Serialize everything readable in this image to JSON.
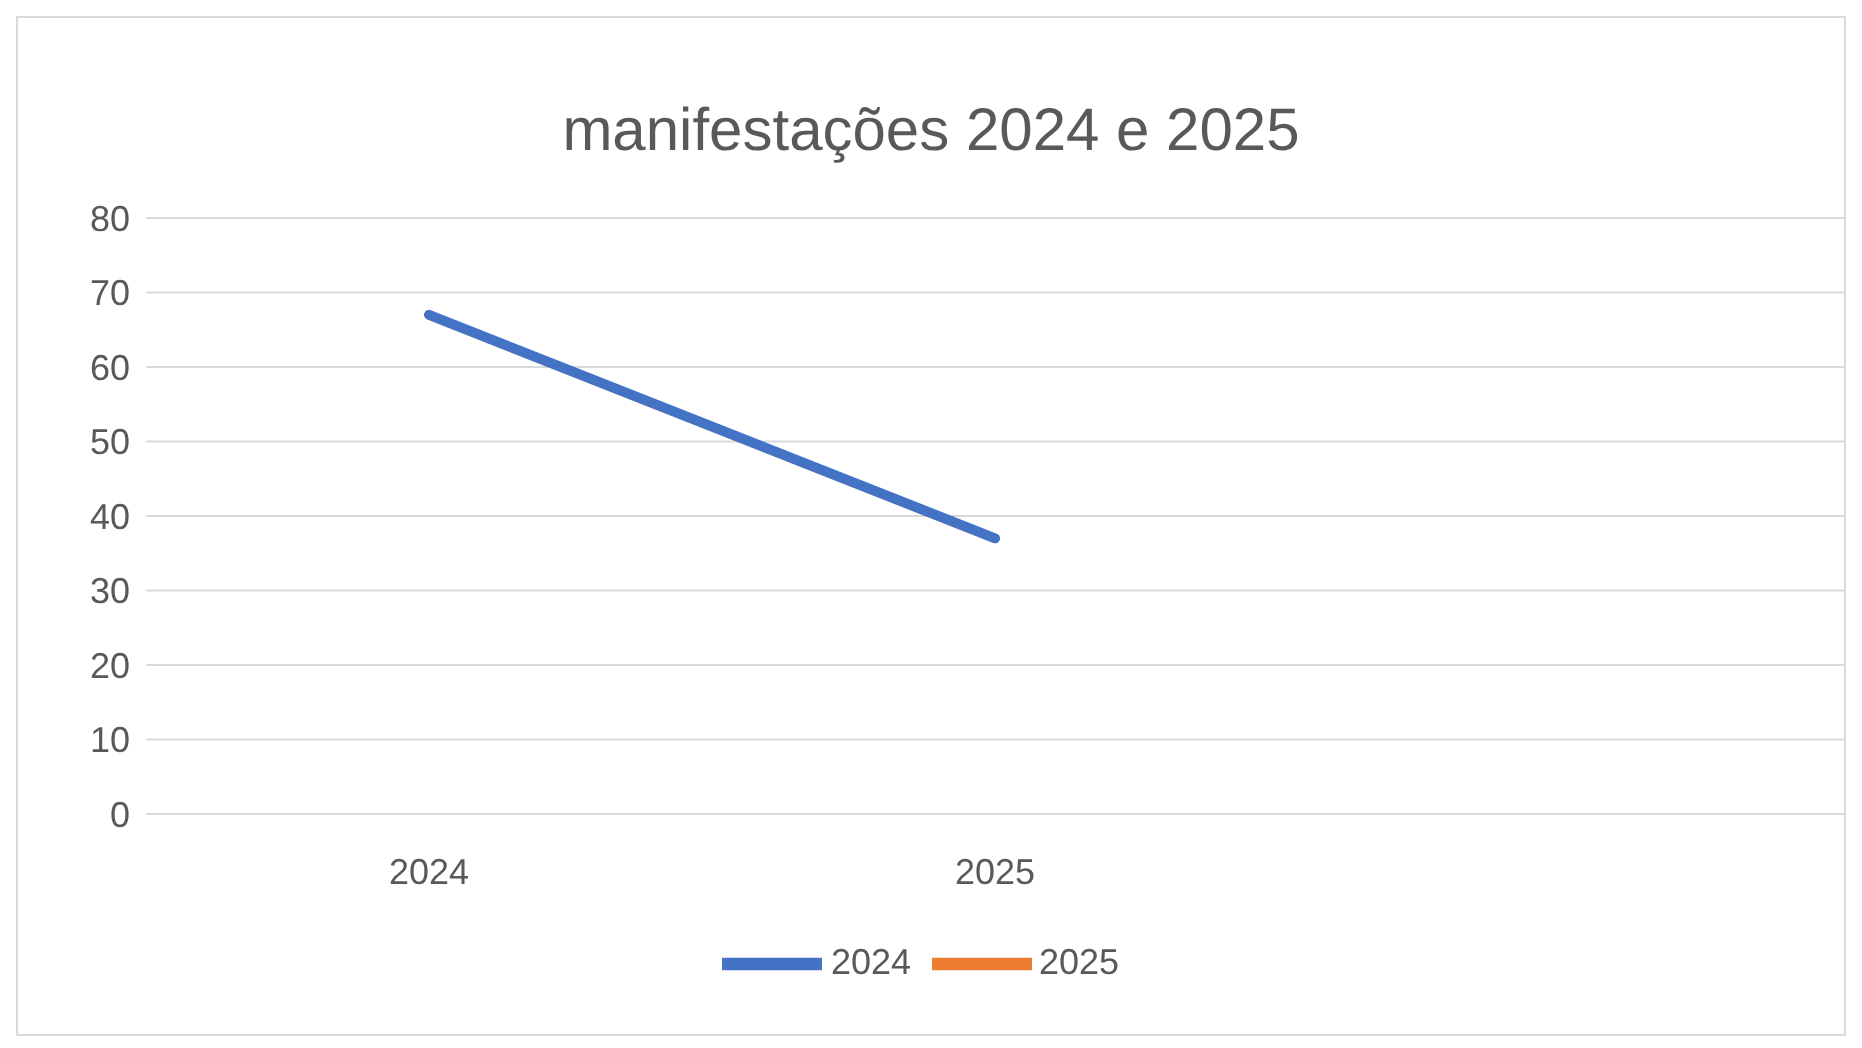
{
  "chart_data": {
    "type": "line",
    "title": "manifestações 2024 e 2025",
    "categories": [
      "2024",
      "2025",
      null
    ],
    "series": [
      {
        "name": "2024",
        "color": "#4472c4",
        "values": [
          67,
          37,
          null
        ]
      },
      {
        "name": "2025",
        "color": "#ed7d31",
        "values": [
          null,
          null,
          null
        ]
      }
    ],
    "ylim": [
      0,
      80
    ],
    "yticks": [
      0,
      10,
      20,
      30,
      40,
      50,
      60,
      70,
      80
    ],
    "grid": "y",
    "legend": "bottom",
    "marker": "none",
    "line_style": "solid"
  }
}
